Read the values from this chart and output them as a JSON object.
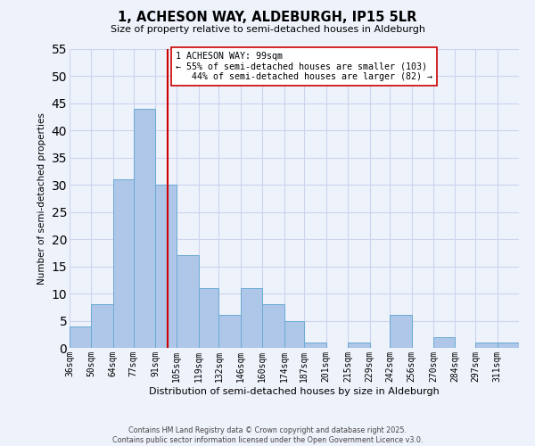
{
  "title": "1, ACHESON WAY, ALDEBURGH, IP15 5LR",
  "subtitle": "Size of property relative to semi-detached houses in Aldeburgh",
  "xlabel": "Distribution of semi-detached houses by size in Aldeburgh",
  "ylabel": "Number of semi-detached properties",
  "bin_labels": [
    "36sqm",
    "50sqm",
    "64sqm",
    "77sqm",
    "91sqm",
    "105sqm",
    "119sqm",
    "132sqm",
    "146sqm",
    "160sqm",
    "174sqm",
    "187sqm",
    "201sqm",
    "215sqm",
    "229sqm",
    "242sqm",
    "256sqm",
    "270sqm",
    "284sqm",
    "297sqm",
    "311sqm"
  ],
  "bar_heights": [
    4,
    8,
    31,
    44,
    30,
    17,
    11,
    6,
    11,
    8,
    5,
    1,
    0,
    1,
    0,
    6,
    0,
    2,
    0,
    1,
    1
  ],
  "bar_color": "#aec6e8",
  "bar_edge_color": "#6aaad4",
  "property_line_x": 99,
  "property_line_label": "1 ACHESON WAY: 99sqm",
  "pct_smaller": 55,
  "pct_larger": 44,
  "count_smaller": 103,
  "count_larger": 82,
  "ylim": [
    0,
    55
  ],
  "yticks": [
    0,
    5,
    10,
    15,
    20,
    25,
    30,
    35,
    40,
    45,
    50,
    55
  ],
  "line_color": "#cc0000",
  "annotation_box_color": "#ffffff",
  "annotation_box_edge": "#cc0000",
  "footer_line1": "Contains HM Land Registry data © Crown copyright and database right 2025.",
  "footer_line2": "Contains public sector information licensed under the Open Government Licence v3.0.",
  "bg_color": "#eef2fb",
  "grid_color": "#ccd4ee"
}
